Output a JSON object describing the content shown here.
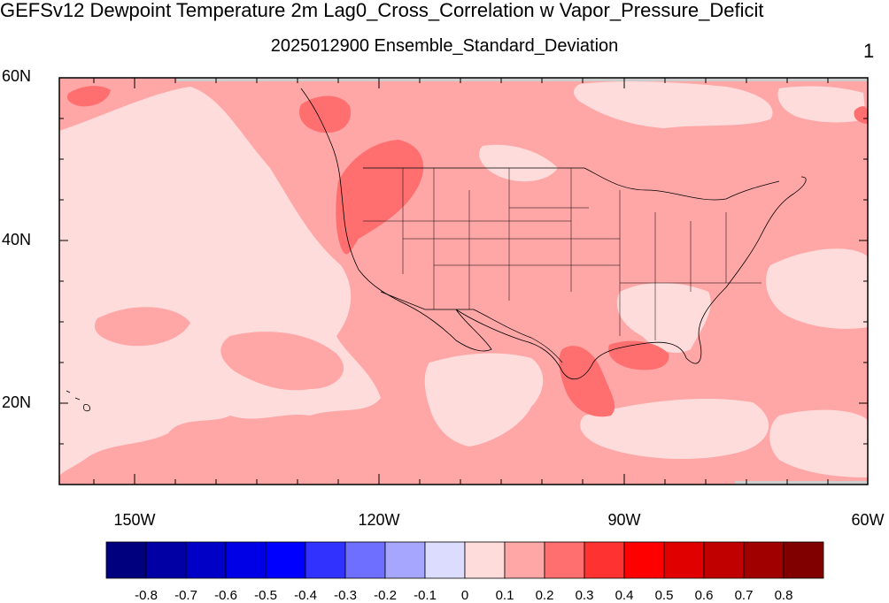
{
  "title": "GEFSv12 Dewpoint Temperature 2m Lag0_Cross_Correlation w Vapor_Pressure_Deficit",
  "subtitle": "2025012900 Ensemble_Standard_Deviation",
  "panel_number": "1",
  "map": {
    "projection": "cylindrical-equidistant",
    "lon_range": [
      -160,
      -60
    ],
    "lat_range": [
      10,
      60
    ],
    "lat_labels": [
      "60N",
      "40N",
      "20N"
    ],
    "lon_labels": [
      "150W",
      "120W",
      "90W",
      "60W"
    ],
    "boundaries": [
      "coastlines",
      "us-state-lines"
    ],
    "dominant_levels": [
      "0 to 0.1",
      "0.1 to 0.2",
      "0.2 to 0.3"
    ]
  },
  "colorbar": {
    "labels": [
      "-0.8",
      "-0.7",
      "-0.6",
      "-0.5",
      "-0.4",
      "-0.3",
      "-0.2",
      "-0.1",
      "0",
      "0.1",
      "0.2",
      "0.3",
      "0.4",
      "0.5",
      "0.6",
      "0.7",
      "0.8"
    ],
    "colors": [
      "#00007f",
      "#0000a5",
      "#0000c6",
      "#0000e6",
      "#0000ff",
      "#3232ff",
      "#6f6fff",
      "#a6a6ff",
      "#dcdcff",
      "#ffdcdc",
      "#ffa6a6",
      "#ff6f6f",
      "#ff3232",
      "#ff0000",
      "#e00000",
      "#c00000",
      "#a00000",
      "#800000"
    ]
  },
  "colors": {
    "level_0_01": "#ffdcdc",
    "level_01_02": "#ffa6a6",
    "level_02_03": "#ff6f6f",
    "missing": "#cccccc"
  }
}
